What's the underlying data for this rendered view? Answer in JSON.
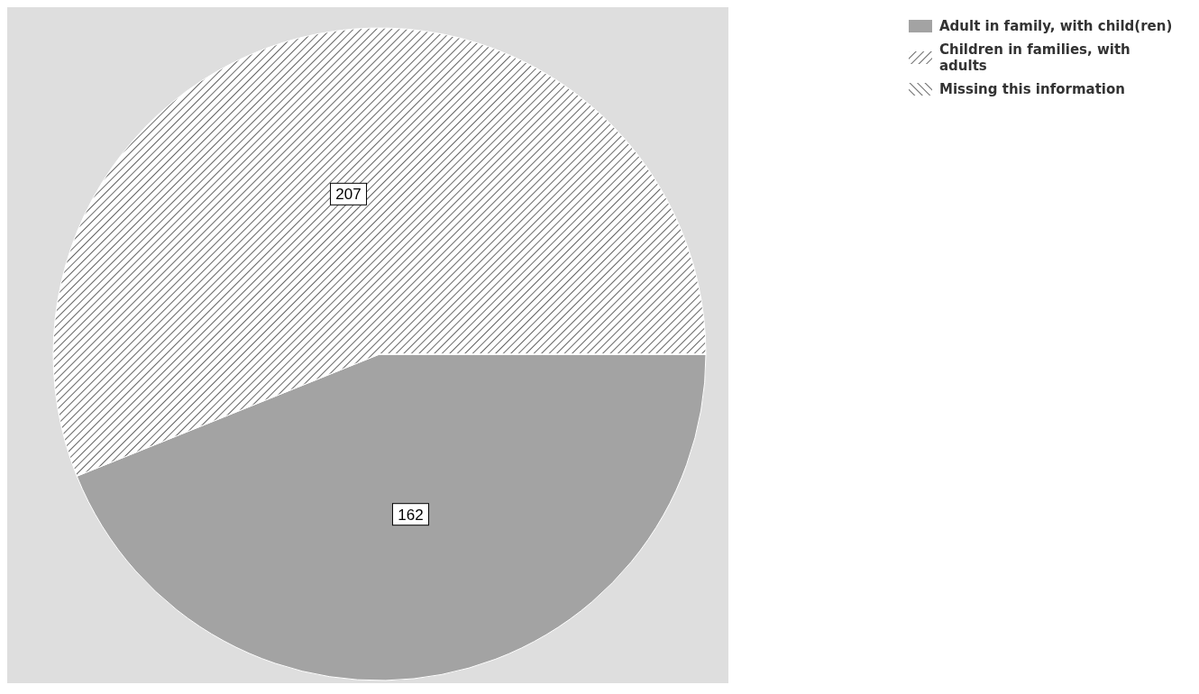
{
  "chart_data": {
    "type": "pie",
    "categories": [
      "Adult in family, with child(ren)",
      "Children in families, with adults",
      "Missing this information"
    ],
    "values": [
      162,
      207,
      0
    ],
    "colors": [
      "#a3a3a3",
      "#ffffff",
      "#ffffff"
    ],
    "value_labels": [
      "162",
      "207",
      null
    ],
    "legend": "right"
  }
}
